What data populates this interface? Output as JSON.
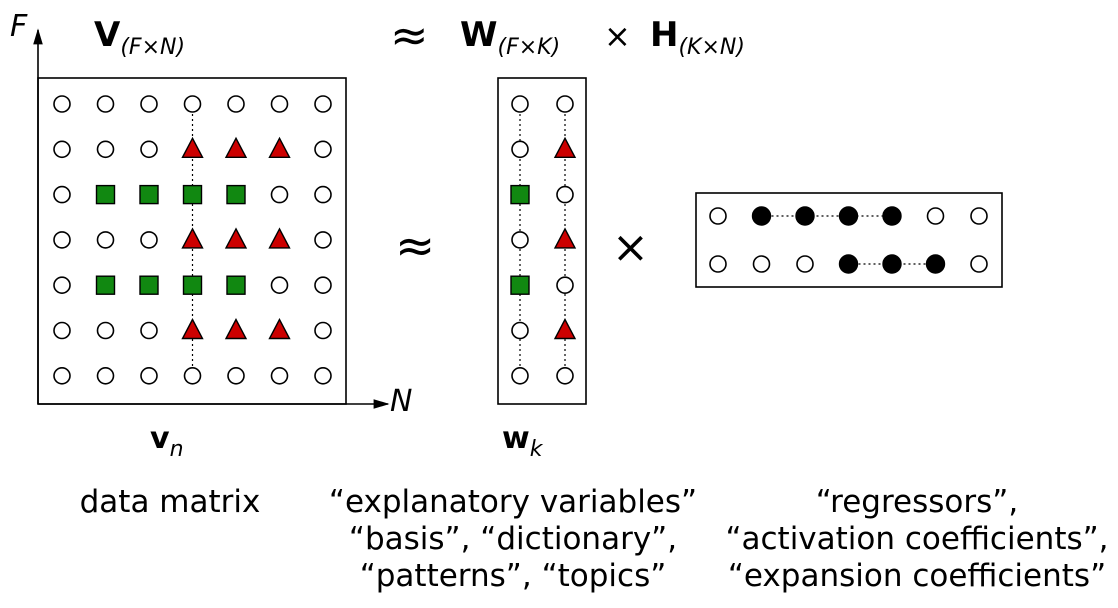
{
  "equation": {
    "V_symbol": "V",
    "V_subscript": "(F×N)",
    "approx_symbol": "≈",
    "W_symbol": "W",
    "W_subscript": "(F×K)",
    "times_symbol": "×",
    "H_symbol": "H",
    "H_subscript": "(K×N)"
  },
  "axes": {
    "vertical_label": "F",
    "horizontal_label": "N"
  },
  "diagram_symbols": {
    "approx": "≈",
    "times": "×"
  },
  "vector_labels": {
    "v_symbol": "v",
    "v_subscript": "n",
    "w_symbol": "w",
    "w_subscript": "k"
  },
  "captions": {
    "data_matrix": [
      "data matrix"
    ],
    "dictionary": [
      "“explanatory variables”",
      "“basis”, “dictionary”,",
      "“patterns”, “topics”"
    ],
    "activations": [
      "“regressors”,",
      "“activation coefficients”,",
      "“expansion coefficients”"
    ]
  },
  "matrices": {
    "V": {
      "rows": [
        [
          "circle",
          "circle",
          "circle",
          "circle",
          "circle",
          "circle",
          "circle"
        ],
        [
          "circle",
          "circle",
          "circle",
          "triangle",
          "triangle",
          "triangle",
          "circle"
        ],
        [
          "circle",
          "square",
          "square",
          "square",
          "square",
          "circle",
          "circle"
        ],
        [
          "circle",
          "circle",
          "circle",
          "triangle",
          "triangle",
          "triangle",
          "circle"
        ],
        [
          "circle",
          "square",
          "square",
          "square",
          "square",
          "circle",
          "circle"
        ],
        [
          "circle",
          "circle",
          "circle",
          "triangle",
          "triangle",
          "triangle",
          "circle"
        ],
        [
          "circle",
          "circle",
          "circle",
          "circle",
          "circle",
          "circle",
          "circle"
        ]
      ],
      "dotted_column": 3
    },
    "W": {
      "rows": [
        [
          "circle",
          "circle"
        ],
        [
          "circle",
          "triangle"
        ],
        [
          "square",
          "circle"
        ],
        [
          "circle",
          "triangle"
        ],
        [
          "square",
          "circle"
        ],
        [
          "circle",
          "triangle"
        ],
        [
          "circle",
          "circle"
        ]
      ],
      "dotted_columns": [
        0,
        1
      ]
    },
    "H": {
      "rows": [
        [
          "circle",
          "filled",
          "filled",
          "filled",
          "filled",
          "circle",
          "circle"
        ],
        [
          "circle",
          "circle",
          "circle",
          "filled",
          "filled",
          "filled",
          "circle"
        ]
      ],
      "dotted_segments": [
        [
          0,
          1,
          4
        ],
        [
          1,
          3,
          5
        ]
      ]
    }
  },
  "colors": {
    "triangle": "#cc0000",
    "square": "#118811",
    "filled": "#000000",
    "outline": "#000000"
  }
}
